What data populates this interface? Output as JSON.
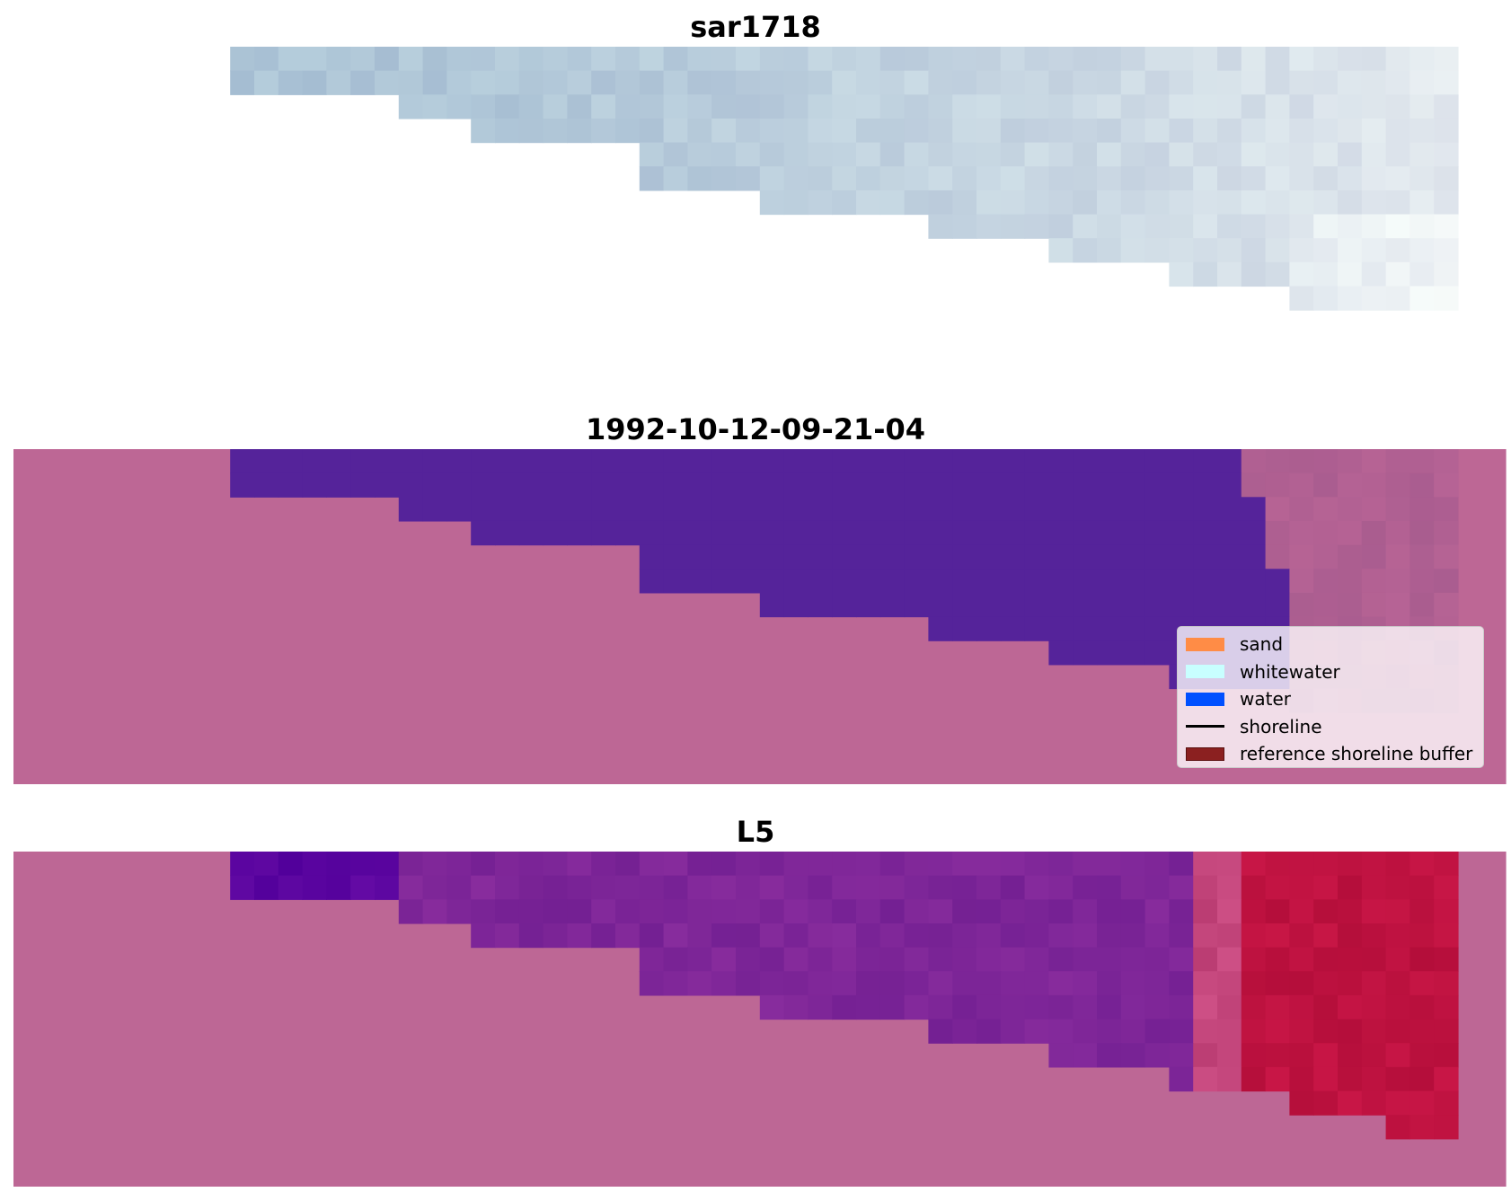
{
  "panels": [
    {
      "title": "sar1718"
    },
    {
      "title": "1992-10-12-09-21-04"
    },
    {
      "title": "L5"
    }
  ],
  "legend": {
    "placement": "lower-right of middle panel",
    "items": [
      {
        "label": "sand",
        "kind": "patch",
        "color": "#ff8c46"
      },
      {
        "label": "whitewater",
        "kind": "patch",
        "color": "#c8ffff"
      },
      {
        "label": "water",
        "kind": "patch",
        "color": "#0050ff"
      },
      {
        "label": "shoreline",
        "kind": "line",
        "color": "#000000"
      },
      {
        "label": "reference shoreline buffer",
        "kind": "patch",
        "color": "#8b2020"
      }
    ]
  },
  "colors": {
    "background_mask": "#bd6795",
    "water_class": "#55239a",
    "sar_bluish": "#b4c8e0",
    "index_purple": "#7a2a9a",
    "index_red": "#c01040"
  }
}
